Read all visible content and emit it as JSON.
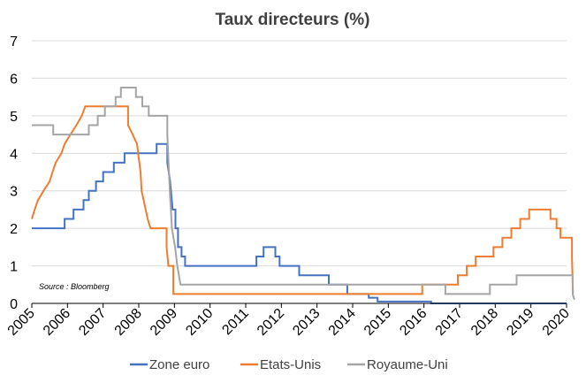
{
  "chart_data": {
    "type": "line",
    "title": "Taux directeurs (%)",
    "source": "Source : Bloomberg",
    "xlabel": "",
    "ylabel": "",
    "xlim": [
      2005,
      2020
    ],
    "ylim": [
      0,
      7
    ],
    "x_ticks": [
      "2005",
      "2006",
      "2007",
      "2008",
      "2009",
      "2010",
      "2011",
      "2012",
      "2013",
      "2014",
      "2015",
      "2016",
      "2017",
      "2018",
      "2019",
      "2020"
    ],
    "y_ticks": [
      "0",
      "1",
      "2",
      "3",
      "4",
      "5",
      "6",
      "7"
    ],
    "grid": true,
    "legend": "bottom",
    "series": [
      {
        "name": "Zone euro",
        "color": "#4472c4",
        "points": [
          [
            2005.0,
            2.0
          ],
          [
            2005.92,
            2.0
          ],
          [
            2005.92,
            2.25
          ],
          [
            2006.17,
            2.25
          ],
          [
            2006.17,
            2.5
          ],
          [
            2006.45,
            2.5
          ],
          [
            2006.45,
            2.75
          ],
          [
            2006.6,
            2.75
          ],
          [
            2006.6,
            3.0
          ],
          [
            2006.8,
            3.0
          ],
          [
            2006.8,
            3.25
          ],
          [
            2007.0,
            3.25
          ],
          [
            2007.0,
            3.5
          ],
          [
            2007.3,
            3.5
          ],
          [
            2007.3,
            3.75
          ],
          [
            2007.6,
            3.75
          ],
          [
            2007.6,
            4.0
          ],
          [
            2008.5,
            4.0
          ],
          [
            2008.5,
            4.25
          ],
          [
            2008.8,
            4.25
          ],
          [
            2008.8,
            3.75
          ],
          [
            2008.88,
            3.25
          ],
          [
            2008.95,
            2.5
          ],
          [
            2009.03,
            2.5
          ],
          [
            2009.03,
            2.0
          ],
          [
            2009.1,
            2.0
          ],
          [
            2009.1,
            1.5
          ],
          [
            2009.2,
            1.5
          ],
          [
            2009.2,
            1.25
          ],
          [
            2009.3,
            1.25
          ],
          [
            2009.3,
            1.0
          ],
          [
            2011.3,
            1.0
          ],
          [
            2011.3,
            1.25
          ],
          [
            2011.5,
            1.25
          ],
          [
            2011.5,
            1.5
          ],
          [
            2011.83,
            1.5
          ],
          [
            2011.83,
            1.25
          ],
          [
            2011.95,
            1.25
          ],
          [
            2011.95,
            1.0
          ],
          [
            2012.5,
            1.0
          ],
          [
            2012.5,
            0.75
          ],
          [
            2013.33,
            0.75
          ],
          [
            2013.33,
            0.5
          ],
          [
            2013.85,
            0.5
          ],
          [
            2013.85,
            0.25
          ],
          [
            2014.45,
            0.25
          ],
          [
            2014.45,
            0.15
          ],
          [
            2014.7,
            0.15
          ],
          [
            2014.7,
            0.05
          ],
          [
            2016.2,
            0.05
          ],
          [
            2016.2,
            0.0
          ],
          [
            2020.0,
            0.0
          ]
        ]
      },
      {
        "name": "Etats-Unis",
        "color": "#ed7d31",
        "points": [
          [
            2005.0,
            2.25
          ],
          [
            2005.08,
            2.5
          ],
          [
            2005.17,
            2.75
          ],
          [
            2005.33,
            3.0
          ],
          [
            2005.5,
            3.25
          ],
          [
            2005.58,
            3.5
          ],
          [
            2005.67,
            3.75
          ],
          [
            2005.83,
            4.0
          ],
          [
            2005.92,
            4.25
          ],
          [
            2006.08,
            4.5
          ],
          [
            2006.25,
            4.75
          ],
          [
            2006.4,
            5.0
          ],
          [
            2006.5,
            5.25
          ],
          [
            2007.7,
            5.25
          ],
          [
            2007.7,
            4.75
          ],
          [
            2007.83,
            4.5
          ],
          [
            2007.95,
            4.25
          ],
          [
            2008.05,
            3.5
          ],
          [
            2008.08,
            3.0
          ],
          [
            2008.25,
            2.25
          ],
          [
            2008.33,
            2.0
          ],
          [
            2008.78,
            2.0
          ],
          [
            2008.78,
            1.5
          ],
          [
            2008.83,
            1.0
          ],
          [
            2008.97,
            1.0
          ],
          [
            2008.97,
            0.25
          ],
          [
            2015.95,
            0.25
          ],
          [
            2015.95,
            0.5
          ],
          [
            2016.95,
            0.5
          ],
          [
            2016.95,
            0.75
          ],
          [
            2017.2,
            0.75
          ],
          [
            2017.2,
            1.0
          ],
          [
            2017.45,
            1.0
          ],
          [
            2017.45,
            1.25
          ],
          [
            2017.95,
            1.25
          ],
          [
            2017.95,
            1.5
          ],
          [
            2018.2,
            1.5
          ],
          [
            2018.2,
            1.75
          ],
          [
            2018.45,
            1.75
          ],
          [
            2018.45,
            2.0
          ],
          [
            2018.7,
            2.0
          ],
          [
            2018.7,
            2.25
          ],
          [
            2018.95,
            2.25
          ],
          [
            2018.95,
            2.5
          ],
          [
            2019.55,
            2.5
          ],
          [
            2019.55,
            2.25
          ],
          [
            2019.72,
            2.25
          ],
          [
            2019.72,
            2.0
          ],
          [
            2019.83,
            2.0
          ],
          [
            2019.83,
            1.75
          ],
          [
            2020.15,
            1.75
          ],
          [
            2020.15,
            1.25
          ],
          [
            2020.18,
            0.25
          ]
        ]
      },
      {
        "name": "Royaume-Uni",
        "color": "#a5a5a5",
        "points": [
          [
            2005.0,
            4.75
          ],
          [
            2005.6,
            4.75
          ],
          [
            2005.6,
            4.5
          ],
          [
            2006.6,
            4.5
          ],
          [
            2006.6,
            4.75
          ],
          [
            2006.85,
            4.75
          ],
          [
            2006.85,
            5.0
          ],
          [
            2007.05,
            5.0
          ],
          [
            2007.05,
            5.25
          ],
          [
            2007.35,
            5.25
          ],
          [
            2007.35,
            5.5
          ],
          [
            2007.5,
            5.5
          ],
          [
            2007.5,
            5.75
          ],
          [
            2007.92,
            5.75
          ],
          [
            2007.92,
            5.5
          ],
          [
            2008.1,
            5.5
          ],
          [
            2008.1,
            5.25
          ],
          [
            2008.28,
            5.25
          ],
          [
            2008.28,
            5.0
          ],
          [
            2008.8,
            5.0
          ],
          [
            2008.8,
            4.5
          ],
          [
            2008.87,
            3.0
          ],
          [
            2008.93,
            2.0
          ],
          [
            2009.02,
            1.5
          ],
          [
            2009.08,
            1.0
          ],
          [
            2009.17,
            0.5
          ],
          [
            2016.6,
            0.5
          ],
          [
            2016.6,
            0.25
          ],
          [
            2017.85,
            0.25
          ],
          [
            2017.85,
            0.5
          ],
          [
            2018.6,
            0.5
          ],
          [
            2018.6,
            0.75
          ],
          [
            2020.17,
            0.75
          ],
          [
            2020.17,
            0.25
          ],
          [
            2020.22,
            0.1
          ]
        ]
      }
    ]
  }
}
